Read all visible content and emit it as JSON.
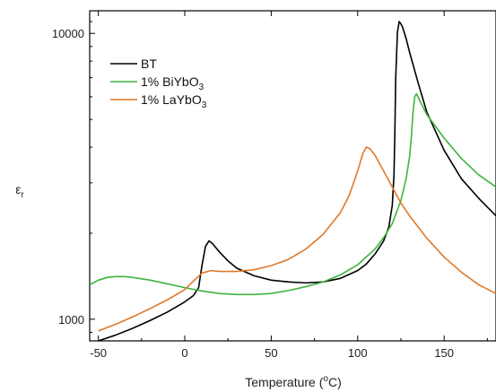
{
  "chart_data": {
    "type": "line",
    "xlabel_prefix": "Temperature (",
    "xlabel_sup": "o",
    "xlabel_suffix": "C)",
    "ylabel_main": "ε",
    "ylabel_sub": "r",
    "xlim": [
      -55,
      180
    ],
    "ylim": [
      840,
      12000
    ],
    "y_scale": "log",
    "x_ticks": [
      -50,
      0,
      50,
      100,
      150
    ],
    "x_tick_labels": [
      "-50",
      "0",
      "50",
      "100",
      "150"
    ],
    "y_ticks": [
      1000,
      10000
    ],
    "y_tick_labels": [
      "1000",
      "10000"
    ],
    "grid": false,
    "legend_position": "top-left",
    "series": [
      {
        "name_main": "BT",
        "name_sub": "",
        "name_suffix": "",
        "color": "#000000",
        "x": [
          -55,
          -50,
          -40,
          -30,
          -20,
          -10,
          0,
          5,
          8,
          10,
          12,
          14,
          16,
          20,
          25,
          30,
          40,
          50,
          60,
          70,
          80,
          90,
          100,
          105,
          110,
          115,
          118,
          120,
          121,
          121.5,
          122,
          123,
          124,
          125,
          126,
          128,
          130,
          135,
          140,
          150,
          160,
          170,
          180
        ],
        "y": [
          825,
          840,
          880,
          930,
          990,
          1060,
          1150,
          1210,
          1290,
          1550,
          1800,
          1880,
          1840,
          1720,
          1600,
          1510,
          1420,
          1370,
          1350,
          1340,
          1350,
          1390,
          1480,
          1560,
          1690,
          1880,
          2100,
          2500,
          3200,
          4500,
          7000,
          10100,
          11000,
          10800,
          10500,
          9600,
          8600,
          6700,
          5300,
          3900,
          3100,
          2650,
          2300
        ]
      },
      {
        "name_main": "1% BiYbO",
        "name_sub": "3",
        "name_suffix": "",
        "color": "#3cb43c",
        "x": [
          -55,
          -50,
          -45,
          -40,
          -35,
          -30,
          -20,
          -10,
          0,
          10,
          20,
          30,
          40,
          50,
          60,
          70,
          80,
          90,
          100,
          110,
          115,
          120,
          125,
          128,
          130,
          131,
          132,
          133,
          134,
          136,
          140,
          150,
          160,
          170,
          180
        ],
        "y": [
          1320,
          1370,
          1400,
          1410,
          1410,
          1400,
          1370,
          1330,
          1290,
          1255,
          1230,
          1220,
          1220,
          1230,
          1260,
          1300,
          1350,
          1430,
          1550,
          1760,
          1930,
          2160,
          2600,
          3100,
          3700,
          4300,
          5300,
          6000,
          6150,
          5800,
          5200,
          4300,
          3650,
          3200,
          2900
        ]
      },
      {
        "name_main": "1% LaYbO",
        "name_sub": "3",
        "name_suffix": "",
        "color": "#e07828",
        "x": [
          -50,
          -40,
          -30,
          -20,
          -10,
          0,
          5,
          10,
          15,
          20,
          30,
          40,
          50,
          60,
          70,
          80,
          90,
          95,
          100,
          103,
          105,
          107,
          110,
          115,
          120,
          125,
          130,
          140,
          150,
          160,
          170,
          180
        ],
        "y": [
          910,
          960,
          1020,
          1090,
          1170,
          1270,
          1360,
          1450,
          1480,
          1470,
          1470,
          1490,
          1540,
          1620,
          1760,
          1980,
          2360,
          2700,
          3300,
          3800,
          4000,
          3950,
          3750,
          3300,
          2900,
          2550,
          2300,
          1920,
          1650,
          1460,
          1320,
          1230
        ]
      }
    ]
  }
}
